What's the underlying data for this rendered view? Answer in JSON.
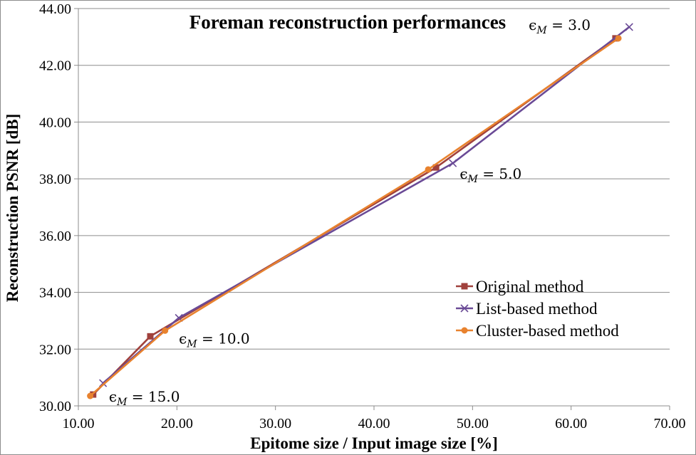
{
  "chart_data": {
    "type": "line",
    "title": "Foreman reconstruction performances",
    "xlabel": "Epitome size / Input image size [%]",
    "ylabel": "Reconstruction PSNR [dB]",
    "xlim": [
      10,
      70
    ],
    "ylim": [
      30,
      44
    ],
    "x_ticks": [
      "10.00",
      "20.00",
      "30.00",
      "40.00",
      "50.00",
      "60.00",
      "70.00"
    ],
    "y_ticks": [
      "30.00",
      "32.00",
      "34.00",
      "36.00",
      "38.00",
      "40.00",
      "42.00",
      "44.00"
    ],
    "grid": "horizontal",
    "legend_position": "bottom-right",
    "series": [
      {
        "name": "Original method",
        "color": "#a0413c",
        "marker": "square",
        "x": [
          11.5,
          17.3,
          46.3,
          64.5
        ],
        "y": [
          30.4,
          32.45,
          38.4,
          42.95
        ]
      },
      {
        "name": "List-based method",
        "color": "#6a4a96",
        "marker": "x",
        "x": [
          12.5,
          20.2,
          48.0,
          65.9
        ],
        "y": [
          30.8,
          33.1,
          38.55,
          43.35
        ]
      },
      {
        "name": "Cluster-based method",
        "color": "#e8822e",
        "marker": "circle",
        "x": [
          11.2,
          18.8,
          45.5,
          64.8
        ],
        "y": [
          30.35,
          32.65,
          38.33,
          42.95
        ]
      }
    ],
    "annotations": [
      {
        "symbol": "ϵ",
        "sub": "M",
        "text": " = 3.0",
        "x": 55.7,
        "y": 43.45
      },
      {
        "symbol": "ϵ",
        "sub": "M",
        "text": " = 5.0",
        "x": 48.7,
        "y": 38.2
      },
      {
        "symbol": "ϵ",
        "sub": "M",
        "text": " = 10.0",
        "x": 20.2,
        "y": 32.4
      },
      {
        "symbol": "ϵ",
        "sub": "M",
        "text": " = 15.0",
        "x": 13.1,
        "y": 30.35
      }
    ]
  }
}
